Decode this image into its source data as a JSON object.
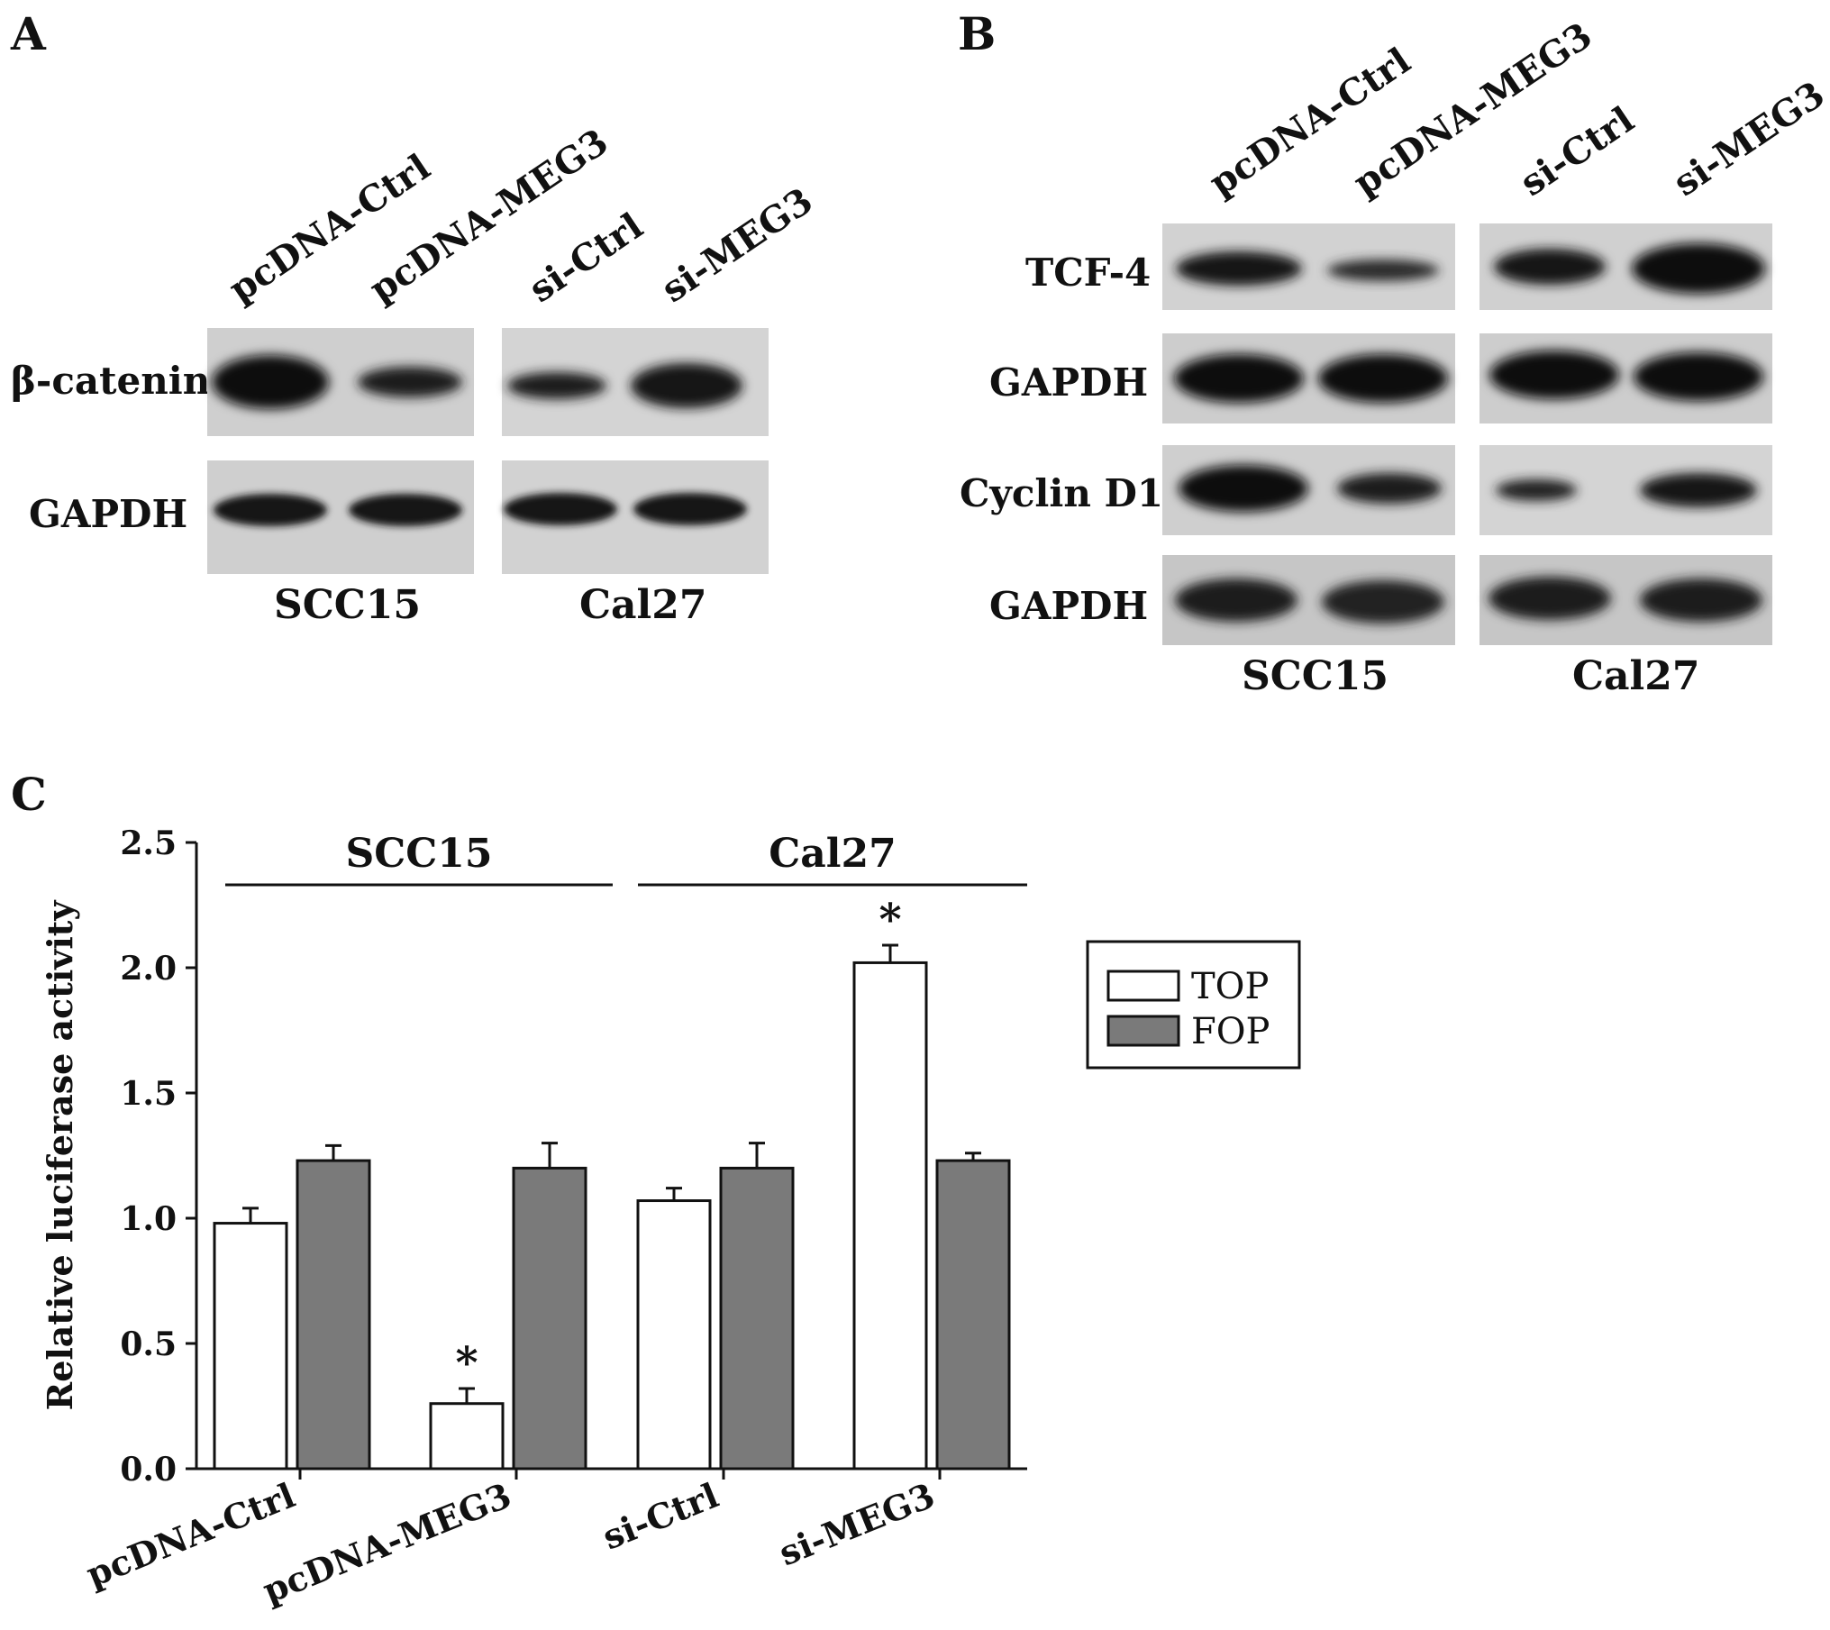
{
  "panels": {
    "A": {
      "letter": "A",
      "lanes": [
        "pcDNA-Ctrl",
        "pcDNA-MEG3",
        "si-Ctrl",
        "si-MEG3"
      ],
      "rows": [
        "β-catenin",
        "GAPDH"
      ],
      "cells": [
        "SCC15",
        "Cal27"
      ]
    },
    "B": {
      "letter": "B",
      "lanes": [
        "pcDNA-Ctrl",
        "pcDNA-MEG3",
        "si-Ctrl",
        "si-MEG3"
      ],
      "rows": [
        "TCF-4",
        "GAPDH",
        "Cyclin D1",
        "GAPDH"
      ],
      "cells": [
        "SCC15",
        "Cal27"
      ]
    },
    "C": {
      "letter": "C"
    }
  },
  "chart_data": {
    "type": "bar",
    "categories": [
      "pcDNA-Ctrl",
      "pcDNA-MEG3",
      "si-Ctrl",
      "si-MEG3"
    ],
    "series": [
      {
        "name": "TOP",
        "values": [
          0.98,
          0.26,
          1.07,
          2.02
        ],
        "errors": [
          0.06,
          0.06,
          0.05,
          0.07
        ],
        "color": "#ffffff"
      },
      {
        "name": "FOP",
        "values": [
          1.23,
          1.2,
          1.2,
          1.23
        ],
        "errors": [
          0.06,
          0.1,
          0.1,
          0.03
        ],
        "color": "#7a7a7a"
      }
    ],
    "significance": [
      "",
      "*",
      "",
      "*"
    ],
    "groups": [
      {
        "label": "SCC15",
        "categories": [
          "pcDNA-Ctrl",
          "pcDNA-MEG3"
        ]
      },
      {
        "label": "Cal27",
        "categories": [
          "si-Ctrl",
          "si-MEG3"
        ]
      }
    ],
    "ylabel": "Relative luciferase activity",
    "xlabel": "",
    "ylim": [
      0,
      2.5
    ],
    "yticks": [
      "0.0",
      "0.5",
      "1.0",
      "1.5",
      "2.0",
      "2.5"
    ],
    "legend_position": "right"
  }
}
